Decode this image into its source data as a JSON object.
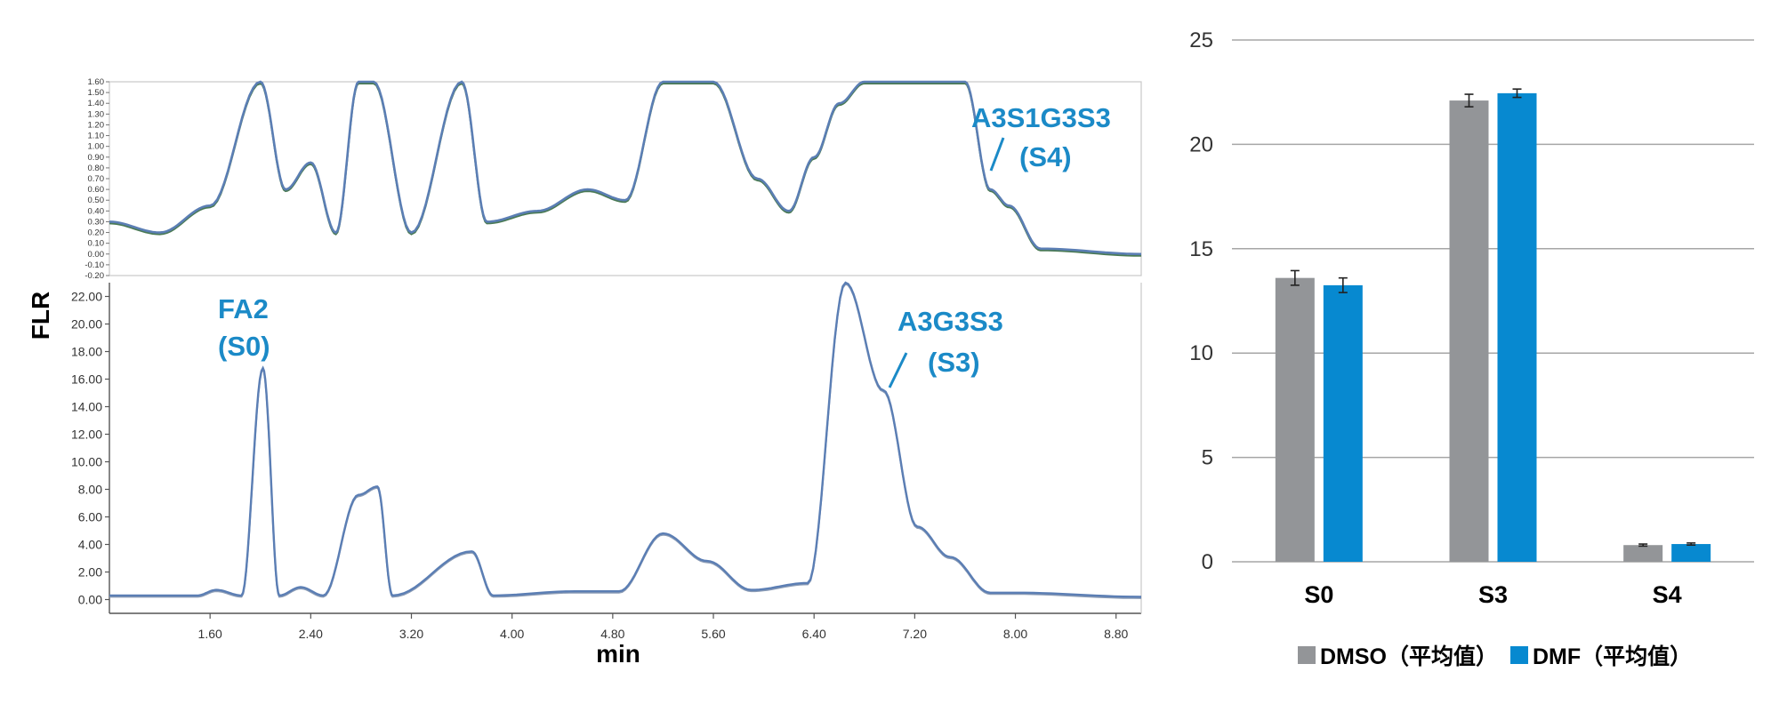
{
  "chart_data": [
    {
      "type": "line",
      "panel": "chromatogram-top",
      "description_labels": {
        "peak": "A3S1G3S3",
        "group": "(S4)"
      },
      "ylim": [
        -0.2,
        1.6
      ],
      "y_ticks": [
        "1.60",
        "1.50",
        "1.40",
        "1.30",
        "1.20",
        "1.10",
        "1.00",
        "0.90",
        "0.80",
        "0.70",
        "0.60",
        "0.50",
        "0.40",
        "0.30",
        "0.20",
        "0.10",
        "0.00",
        "-0.10",
        "-0.20"
      ],
      "xlim": [
        0.8,
        9.0
      ],
      "series": [
        {
          "values": [
            [
              0.8,
              0.3
            ],
            [
              1.2,
              0.2
            ],
            [
              1.6,
              0.45
            ],
            [
              2.0,
              1.6
            ],
            [
              2.2,
              0.6
            ],
            [
              2.4,
              0.85
            ],
            [
              2.6,
              0.2
            ],
            [
              2.78,
              1.6
            ],
            [
              2.9,
              1.6
            ],
            [
              3.2,
              0.2
            ],
            [
              3.6,
              1.6
            ],
            [
              3.8,
              0.3
            ],
            [
              4.2,
              0.4
            ],
            [
              4.6,
              0.6
            ],
            [
              4.9,
              0.5
            ],
            [
              5.2,
              1.6
            ],
            [
              5.6,
              1.6
            ],
            [
              5.95,
              0.7
            ],
            [
              6.2,
              0.4
            ],
            [
              6.4,
              0.9
            ],
            [
              6.6,
              1.4
            ],
            [
              6.8,
              1.6
            ],
            [
              7.0,
              1.6
            ],
            [
              7.2,
              1.6
            ],
            [
              7.4,
              1.6
            ],
            [
              7.6,
              1.6
            ],
            [
              7.8,
              0.6
            ],
            [
              7.95,
              0.45
            ],
            [
              8.2,
              0.05
            ],
            [
              9.0,
              0.0
            ]
          ]
        }
      ]
    },
    {
      "type": "line",
      "panel": "chromatogram-bottom",
      "xlabel": "min",
      "ylabel": "FLR",
      "xlim": [
        0.8,
        9.0
      ],
      "ylim": [
        -1.0,
        23.0
      ],
      "x_ticks": [
        "1.60",
        "2.40",
        "3.20",
        "4.00",
        "4.80",
        "5.60",
        "6.40",
        "7.20",
        "8.00",
        "8.80"
      ],
      "y_ticks": [
        "22.00",
        "20.00",
        "18.00",
        "16.00",
        "14.00",
        "12.00",
        "10.00",
        "8.00",
        "6.00",
        "4.00",
        "2.00",
        "0.00"
      ],
      "annotations": [
        {
          "text": "FA2",
          "sub": "(S0)"
        },
        {
          "text": "A3G3S3",
          "sub": "(S3)"
        }
      ],
      "series": [
        {
          "values": [
            [
              0.8,
              0.3
            ],
            [
              1.5,
              0.3
            ],
            [
              1.65,
              0.7
            ],
            [
              1.85,
              0.3
            ],
            [
              2.02,
              16.8
            ],
            [
              2.15,
              0.3
            ],
            [
              2.32,
              0.9
            ],
            [
              2.5,
              0.3
            ],
            [
              2.78,
              7.6
            ],
            [
              2.93,
              8.2
            ],
            [
              3.05,
              0.3
            ],
            [
              3.68,
              3.5
            ],
            [
              3.85,
              0.3
            ],
            [
              4.5,
              0.6
            ],
            [
              4.85,
              0.6
            ],
            [
              5.2,
              4.8
            ],
            [
              5.55,
              2.8
            ],
            [
              5.9,
              0.7
            ],
            [
              6.35,
              1.2
            ],
            [
              6.65,
              23.0
            ],
            [
              6.95,
              15.2
            ],
            [
              7.22,
              5.3
            ],
            [
              7.48,
              3.1
            ],
            [
              7.8,
              0.5
            ],
            [
              8.0,
              0.5
            ],
            [
              9.0,
              0.2
            ]
          ]
        }
      ]
    },
    {
      "type": "bar",
      "panel": "bar-chart",
      "categories": [
        "S0",
        "S3",
        "S4"
      ],
      "ylim": [
        0,
        25
      ],
      "y_ticks": [
        "0",
        "5",
        "10",
        "15",
        "20",
        "25"
      ],
      "grid": true,
      "legend_position": "bottom",
      "series": [
        {
          "name": "DMSO（平均值）",
          "color": "#939598",
          "values": [
            13.6,
            22.1,
            0.8
          ],
          "errors": [
            0.35,
            0.3,
            0.05
          ]
        },
        {
          "name": "DMF（平均值）",
          "color": "#0789d0",
          "values": [
            13.25,
            22.45,
            0.85
          ],
          "errors": [
            0.35,
            0.2,
            0.05
          ]
        }
      ]
    }
  ]
}
